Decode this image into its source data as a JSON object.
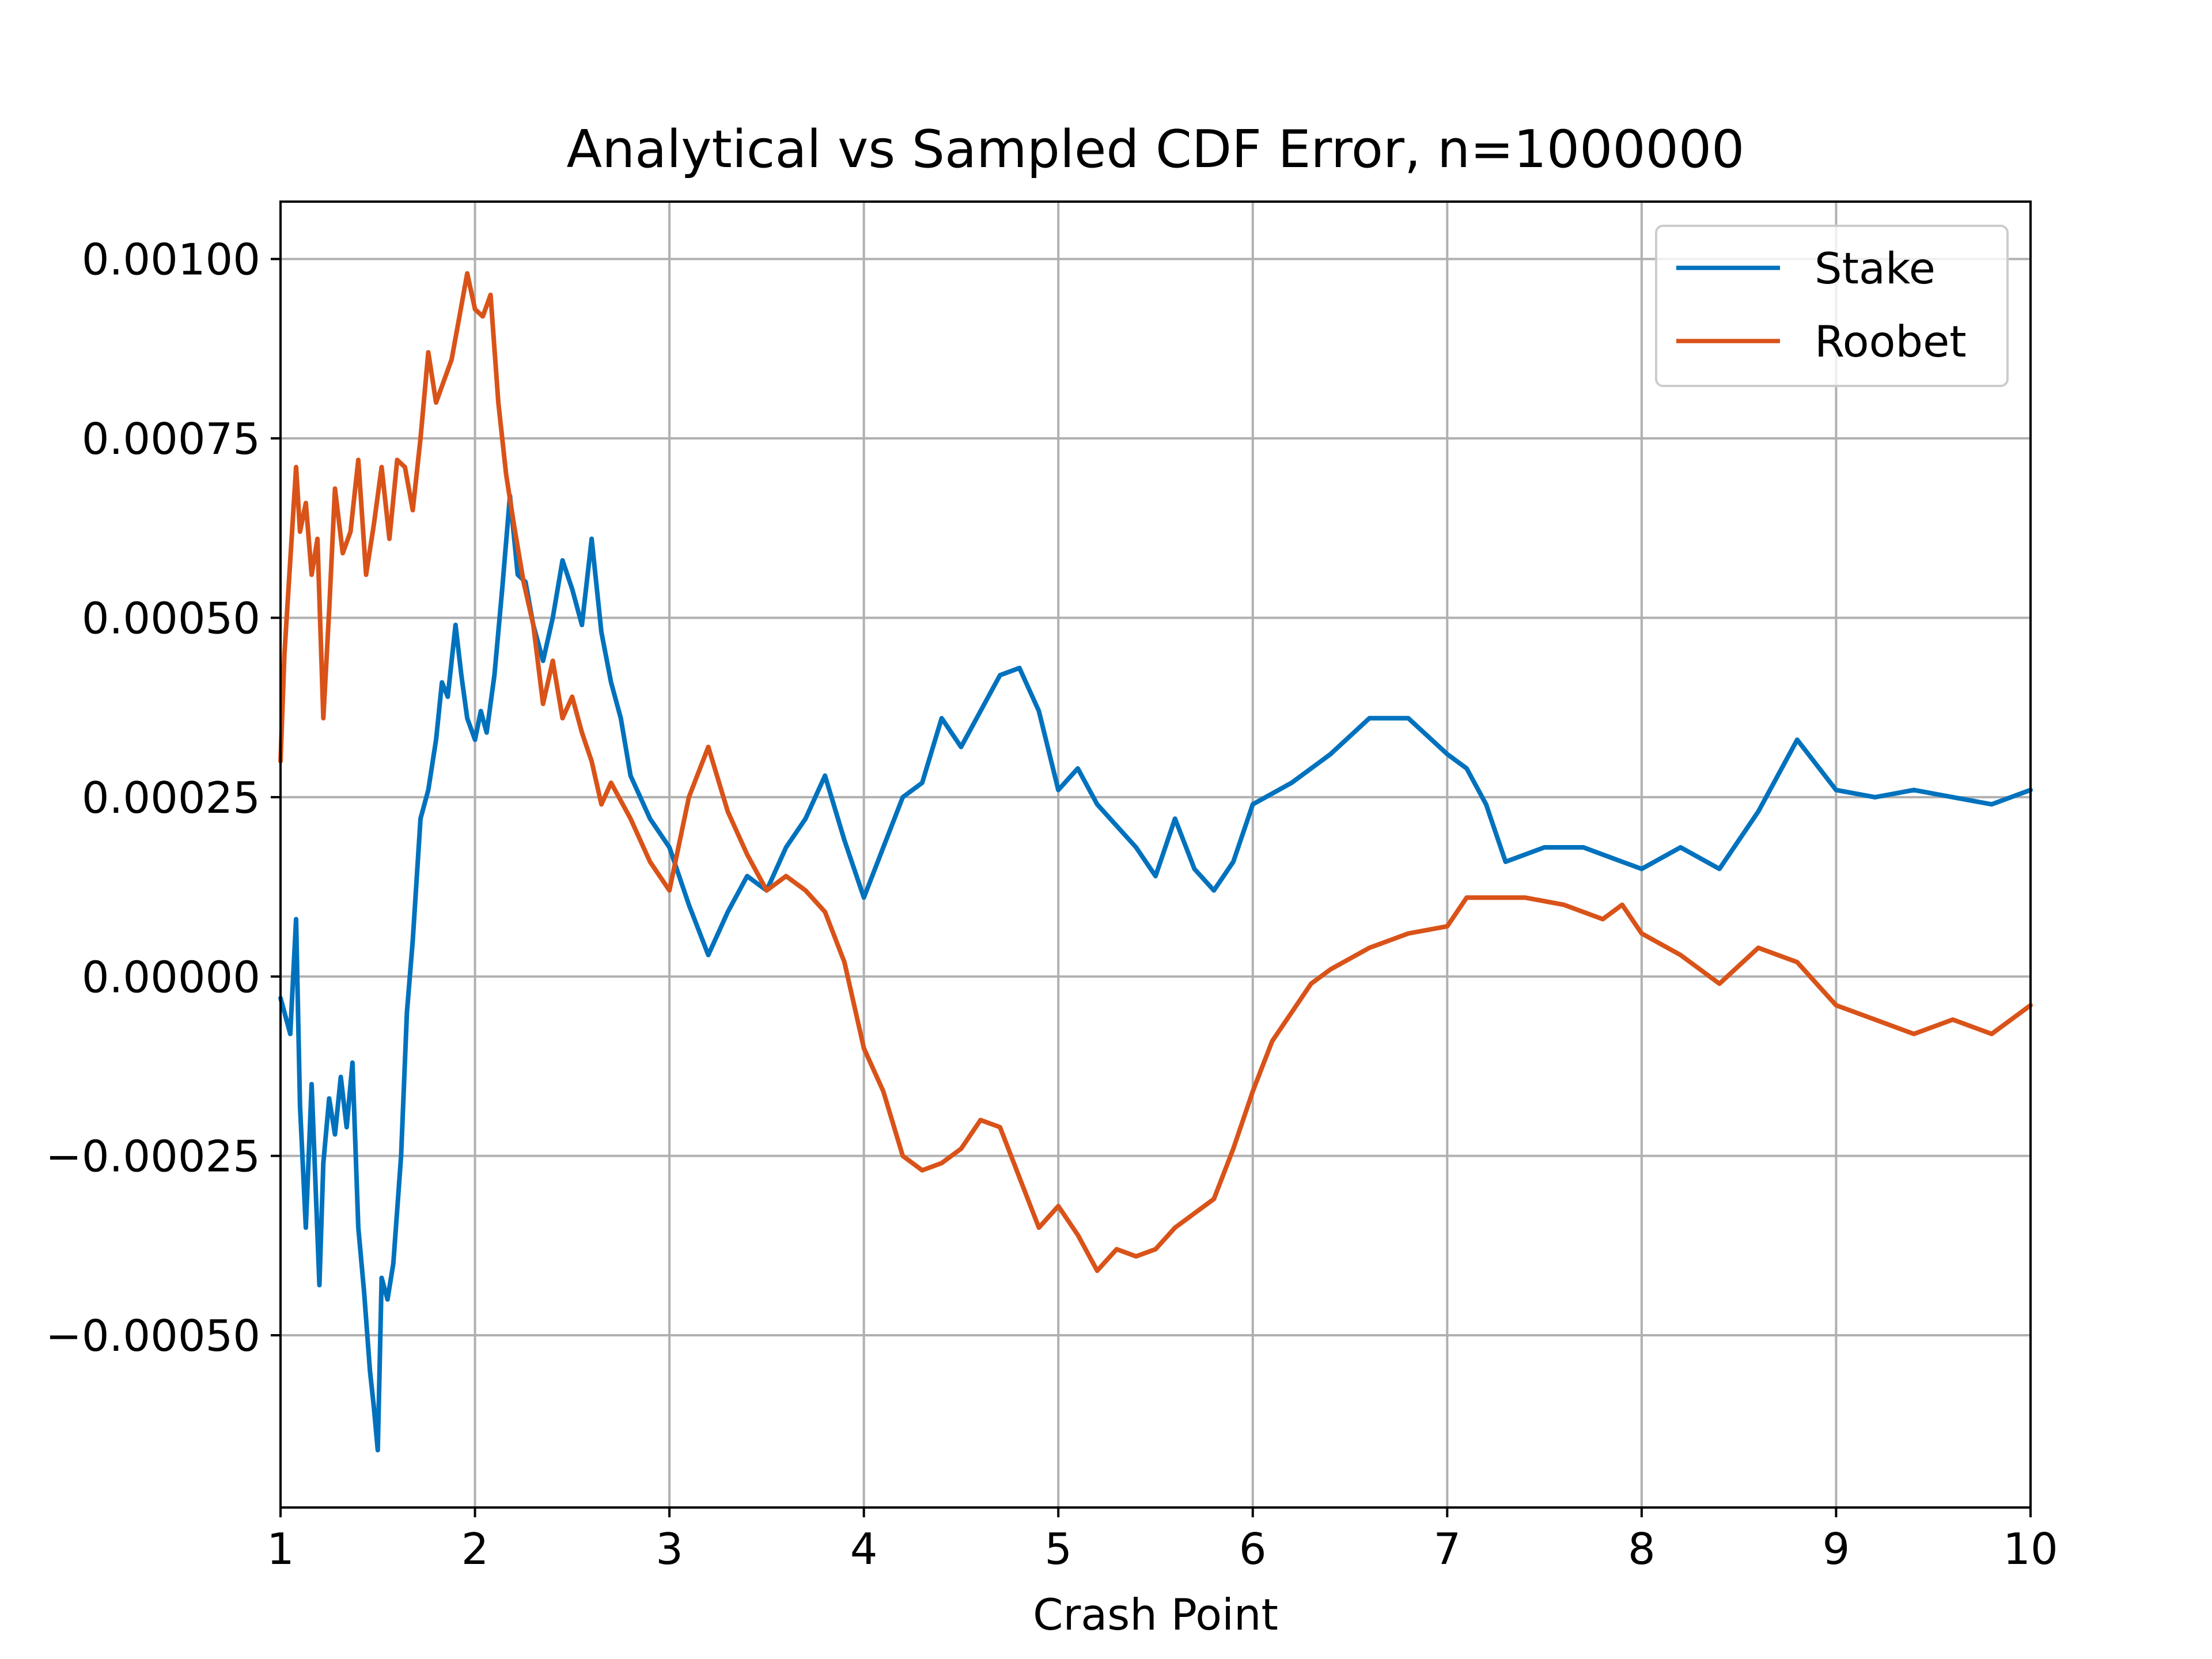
{
  "chart_data": {
    "type": "line",
    "title": "Analytical vs Sampled CDF Error, n=1000000",
    "xlabel": "Crash Point",
    "ylabel": "",
    "xlim": [
      1,
      10
    ],
    "ylim": [
      -0.00074,
      0.00108
    ],
    "grid": true,
    "legend_position": "top-right",
    "x_ticks": [
      1,
      2,
      3,
      4,
      5,
      6,
      7,
      8,
      9,
      10
    ],
    "x_tick_labels": [
      "1",
      "2",
      "3",
      "4",
      "5",
      "6",
      "7",
      "8",
      "9",
      "10"
    ],
    "y_ticks": [
      -0.0005,
      -0.00025,
      0,
      0.00025,
      0.0005,
      0.00075,
      0.001
    ],
    "y_tick_labels": [
      "−0.00050",
      "−0.00025",
      "0.00000",
      "0.00025",
      "0.00050",
      "0.00075",
      "0.00100"
    ],
    "series": [
      {
        "name": "Stake",
        "color": "#0072bd",
        "x": [
          1.0,
          1.05,
          1.08,
          1.1,
          1.13,
          1.16,
          1.2,
          1.22,
          1.25,
          1.28,
          1.31,
          1.34,
          1.37,
          1.4,
          1.43,
          1.46,
          1.48,
          1.5,
          1.52,
          1.55,
          1.58,
          1.62,
          1.65,
          1.68,
          1.72,
          1.76,
          1.8,
          1.83,
          1.86,
          1.9,
          1.93,
          1.96,
          2.0,
          2.03,
          2.06,
          2.1,
          2.14,
          2.18,
          2.22,
          2.26,
          2.3,
          2.35,
          2.4,
          2.45,
          2.5,
          2.55,
          2.6,
          2.65,
          2.7,
          2.75,
          2.8,
          2.9,
          3.0,
          3.1,
          3.2,
          3.3,
          3.4,
          3.5,
          3.6,
          3.7,
          3.8,
          3.9,
          4.0,
          4.1,
          4.2,
          4.3,
          4.4,
          4.5,
          4.6,
          4.7,
          4.8,
          4.9,
          5.0,
          5.1,
          5.2,
          5.3,
          5.4,
          5.5,
          5.6,
          5.7,
          5.8,
          5.9,
          6.0,
          6.2,
          6.4,
          6.6,
          6.8,
          7.0,
          7.1,
          7.2,
          7.3,
          7.5,
          7.7,
          7.9,
          8.0,
          8.2,
          8.4,
          8.6,
          8.8,
          9.0,
          9.2,
          9.4,
          9.6,
          9.8,
          10.0
        ],
        "y": [
          -3e-05,
          -8e-05,
          8e-05,
          -0.00018,
          -0.00035,
          -0.00015,
          -0.00043,
          -0.00026,
          -0.00017,
          -0.00022,
          -0.00014,
          -0.00021,
          -0.00012,
          -0.00035,
          -0.00044,
          -0.00055,
          -0.0006,
          -0.00066,
          -0.00042,
          -0.00045,
          -0.0004,
          -0.00025,
          -5e-05,
          5e-05,
          0.00022,
          0.00026,
          0.00033,
          0.00041,
          0.00039,
          0.00049,
          0.00042,
          0.00036,
          0.00033,
          0.00037,
          0.00034,
          0.00042,
          0.00054,
          0.00067,
          0.00056,
          0.00055,
          0.00049,
          0.00044,
          0.0005,
          0.00058,
          0.00054,
          0.00049,
          0.00061,
          0.00048,
          0.00041,
          0.00036,
          0.00028,
          0.00022,
          0.00018,
          0.0001,
          3e-05,
          9e-05,
          0.00014,
          0.00012,
          0.00018,
          0.00022,
          0.00028,
          0.00019,
          0.00011,
          0.00018,
          0.00025,
          0.00027,
          0.00036,
          0.00032,
          0.00037,
          0.00042,
          0.00043,
          0.00037,
          0.00026,
          0.00029,
          0.00024,
          0.00021,
          0.00018,
          0.00014,
          0.00022,
          0.00015,
          0.00012,
          0.00016,
          0.00024,
          0.00027,
          0.00031,
          0.00036,
          0.00036,
          0.00031,
          0.00029,
          0.00024,
          0.00016,
          0.00018,
          0.00018,
          0.00016,
          0.00015,
          0.00018,
          0.00015,
          0.00023,
          0.00033,
          0.00026,
          0.00025,
          0.00026,
          0.00025,
          0.00024,
          0.00026
        ]
      },
      {
        "name": "Roobet",
        "color": "#d95319",
        "x": [
          1.0,
          1.02,
          1.05,
          1.08,
          1.1,
          1.13,
          1.16,
          1.19,
          1.22,
          1.25,
          1.28,
          1.32,
          1.36,
          1.4,
          1.44,
          1.48,
          1.52,
          1.56,
          1.6,
          1.64,
          1.68,
          1.72,
          1.76,
          1.8,
          1.84,
          1.88,
          1.92,
          1.96,
          2.0,
          2.04,
          2.08,
          2.12,
          2.16,
          2.2,
          2.25,
          2.3,
          2.35,
          2.4,
          2.45,
          2.5,
          2.55,
          2.6,
          2.65,
          2.7,
          2.8,
          2.9,
          3.0,
          3.1,
          3.2,
          3.3,
          3.4,
          3.5,
          3.6,
          3.7,
          3.8,
          3.9,
          4.0,
          4.1,
          4.2,
          4.3,
          4.4,
          4.5,
          4.6,
          4.7,
          4.8,
          4.9,
          5.0,
          5.1,
          5.2,
          5.3,
          5.4,
          5.5,
          5.6,
          5.7,
          5.8,
          5.9,
          6.0,
          6.1,
          6.2,
          6.3,
          6.4,
          6.6,
          6.8,
          7.0,
          7.1,
          7.2,
          7.4,
          7.6,
          7.8,
          7.9,
          8.0,
          8.2,
          8.4,
          8.6,
          8.8,
          9.0,
          9.2,
          9.4,
          9.6,
          9.8,
          10.0
        ],
        "y": [
          0.0003,
          0.00045,
          0.00058,
          0.00071,
          0.00062,
          0.00066,
          0.00056,
          0.00061,
          0.00036,
          0.00051,
          0.00068,
          0.00059,
          0.00062,
          0.00072,
          0.00056,
          0.00063,
          0.00071,
          0.00061,
          0.00072,
          0.00071,
          0.00065,
          0.00075,
          0.00087,
          0.0008,
          0.00083,
          0.00086,
          0.00092,
          0.00098,
          0.00093,
          0.00092,
          0.00095,
          0.0008,
          0.0007,
          0.00063,
          0.00055,
          0.00049,
          0.00038,
          0.00044,
          0.00036,
          0.00039,
          0.00034,
          0.0003,
          0.00024,
          0.00027,
          0.00022,
          0.00016,
          0.00012,
          0.00025,
          0.00032,
          0.00023,
          0.00017,
          0.00012,
          0.00014,
          0.00012,
          9e-05,
          2e-05,
          -0.0001,
          -0.00016,
          -0.00025,
          -0.00027,
          -0.00026,
          -0.00024,
          -0.0002,
          -0.00021,
          -0.00028,
          -0.00035,
          -0.00032,
          -0.00036,
          -0.00041,
          -0.00038,
          -0.00039,
          -0.00038,
          -0.00035,
          -0.00033,
          -0.00031,
          -0.00024,
          -0.00016,
          -9e-05,
          -5e-05,
          -1e-05,
          1e-05,
          4e-05,
          6e-05,
          7e-05,
          0.00011,
          0.00011,
          0.00011,
          0.0001,
          8e-05,
          0.0001,
          6e-05,
          3e-05,
          -1e-05,
          4e-05,
          2e-05,
          -4e-05,
          -6e-05,
          -8e-05,
          -6e-05,
          -8e-05,
          -4e-05
        ]
      }
    ]
  }
}
